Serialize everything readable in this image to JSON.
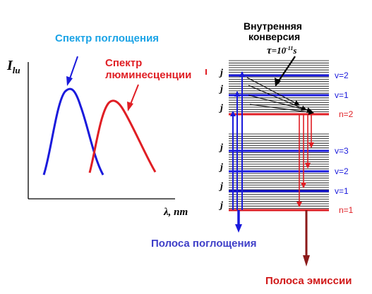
{
  "left_panel": {
    "y_axis_label": "I",
    "y_axis_subscript": "lu",
    "x_axis_label": "λ, nm",
    "absorption_title": "Спектр поглощения",
    "luminescence_title_line1": "Спектр",
    "luminescence_title_line2": "люминесценции",
    "absorption_color": "#1a1adc",
    "luminescence_color": "#e01e24",
    "title_blue": "#1aa3e6"
  },
  "right_panel": {
    "ic_title_line1": "Внутренняя",
    "ic_title_line2": "конверсия",
    "tau_symbol": "τ",
    "tau_value": "=10",
    "tau_exponent": "-11",
    "tau_unit": "s",
    "sublevel_label": "j",
    "level_labels_upper": [
      "v=2",
      "v=1",
      "n=2"
    ],
    "level_labels_lower": [
      "v=3",
      "v=2",
      "v=1",
      "n=1"
    ],
    "absorption_band": "Полоса поглощения",
    "emission_band": "Полоса эмиссии",
    "absorption_band_color": "#3f3fc8",
    "emission_band_color": "#d01818"
  }
}
